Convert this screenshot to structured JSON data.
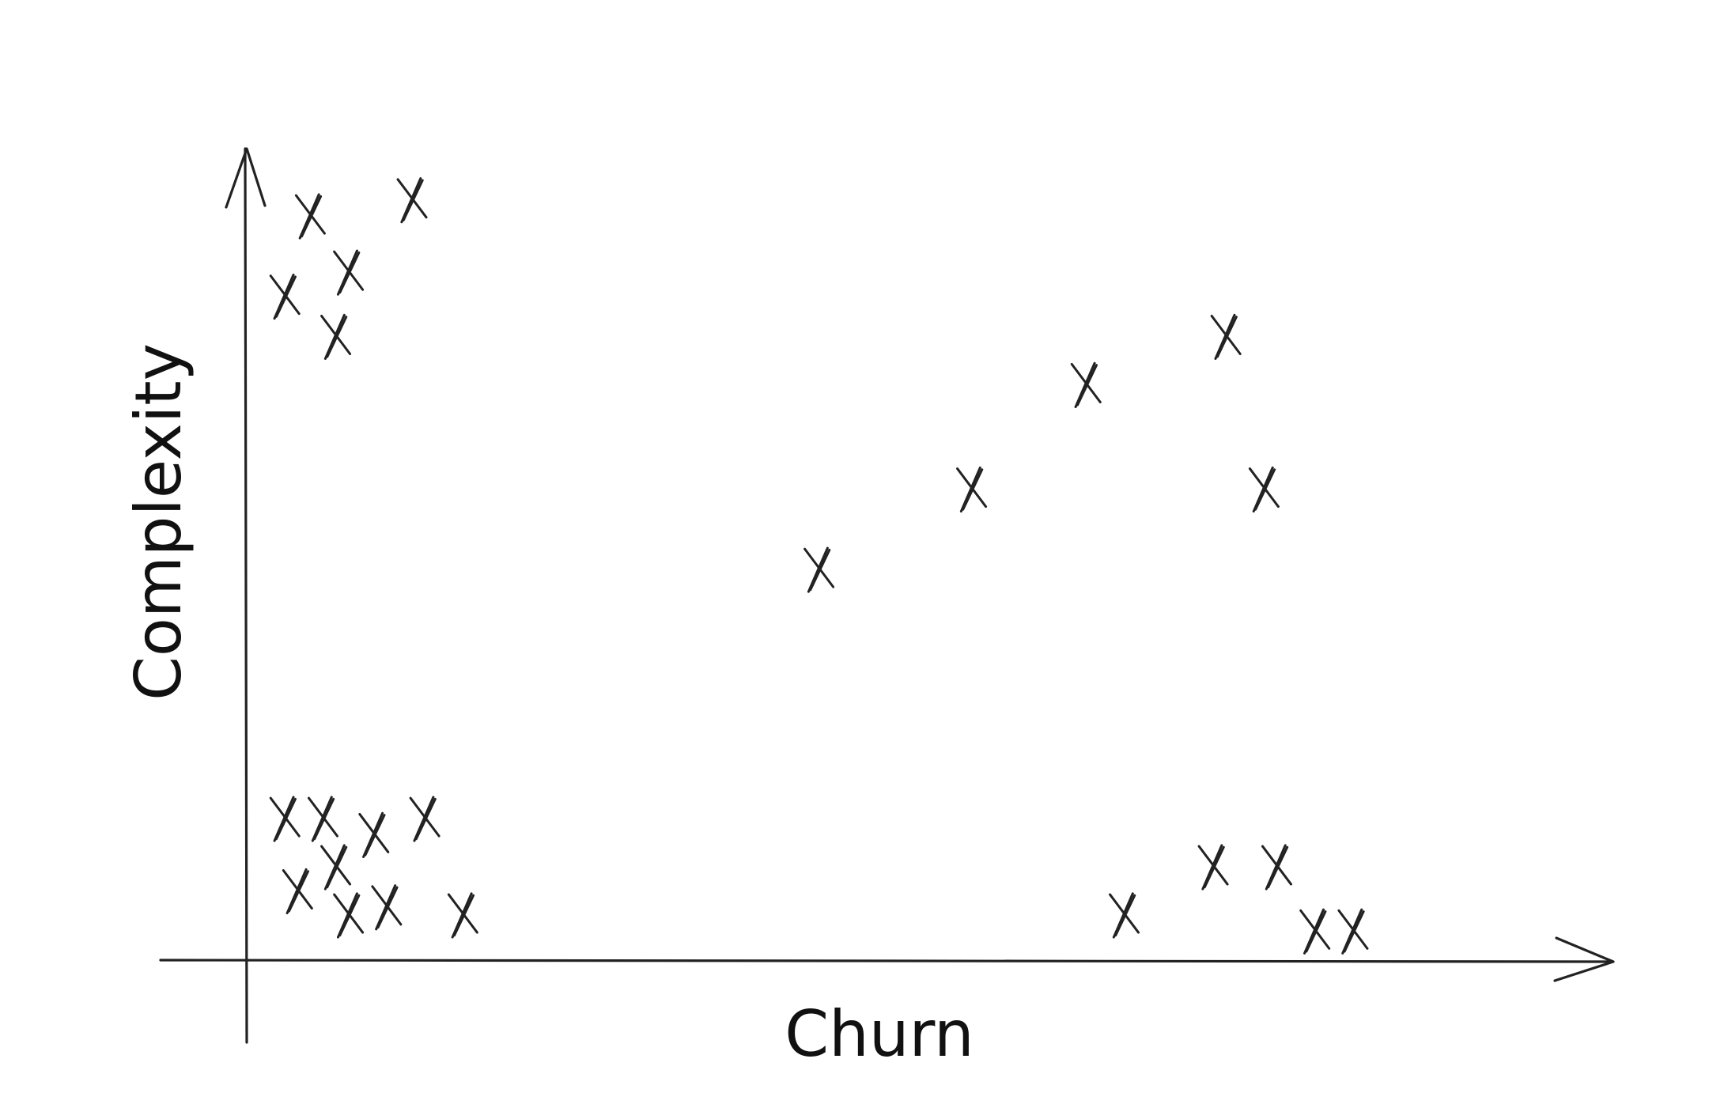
{
  "chart_data": {
    "type": "scatter",
    "title": "",
    "xlabel": "Churn",
    "ylabel": "Complexity",
    "xlim": [
      0,
      1
    ],
    "ylim": [
      0,
      1
    ],
    "grid": false,
    "legend": "none",
    "ticks": false,
    "marker": "x",
    "color": "#222222",
    "points": [
      {
        "x": 0.05,
        "y": 0.93
      },
      {
        "x": 0.13,
        "y": 0.95
      },
      {
        "x": 0.08,
        "y": 0.86
      },
      {
        "x": 0.03,
        "y": 0.83
      },
      {
        "x": 0.07,
        "y": 0.78
      },
      {
        "x": 0.03,
        "y": 0.18
      },
      {
        "x": 0.06,
        "y": 0.18
      },
      {
        "x": 0.1,
        "y": 0.16
      },
      {
        "x": 0.14,
        "y": 0.18
      },
      {
        "x": 0.07,
        "y": 0.12
      },
      {
        "x": 0.04,
        "y": 0.09
      },
      {
        "x": 0.08,
        "y": 0.06
      },
      {
        "x": 0.11,
        "y": 0.07
      },
      {
        "x": 0.17,
        "y": 0.06
      },
      {
        "x": 0.45,
        "y": 0.49
      },
      {
        "x": 0.57,
        "y": 0.59
      },
      {
        "x": 0.66,
        "y": 0.72
      },
      {
        "x": 0.77,
        "y": 0.78
      },
      {
        "x": 0.8,
        "y": 0.59
      },
      {
        "x": 0.69,
        "y": 0.06
      },
      {
        "x": 0.76,
        "y": 0.12
      },
      {
        "x": 0.81,
        "y": 0.12
      },
      {
        "x": 0.84,
        "y": 0.04
      },
      {
        "x": 0.87,
        "y": 0.04
      }
    ]
  }
}
